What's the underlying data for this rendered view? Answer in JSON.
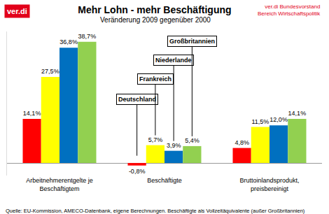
{
  "chart_data": {
    "type": "bar",
    "title": "Mehr Lohn - mehr Beschäftigung",
    "subtitle": "Veränderung 2009 gegenüber 2000",
    "logo": "ver.di",
    "publisher": [
      "ver.di Bundesvorstand",
      "Bereich Wirtschaftspolitik"
    ],
    "source": "Quelle: EU-Kommission, AMECO-Datenbank, eigene Berechnungen. Beschäftigte als Vollzeitäquivalente (außer Großbritannien)",
    "categories": [
      "Arbeitnehmerentgelte je Beschäftigtem",
      "Beschäftigte",
      "Bruttoinlandsprodukt, preisbereinigt"
    ],
    "series": [
      {
        "name": "Deutschland",
        "color": "#ff0000",
        "values": [
          14.1,
          -0.8,
          4.8
        ],
        "value_labels": [
          "14,1%",
          "-0,8%",
          "4,8%"
        ]
      },
      {
        "name": "Frankreich",
        "color": "#ffff00",
        "values": [
          27.5,
          5.7,
          11.5
        ],
        "value_labels": [
          "27,5%",
          "5,7%",
          "11,5%"
        ]
      },
      {
        "name": "Niederlande",
        "color": "#0070c0",
        "values": [
          36.8,
          3.9,
          12.0
        ],
        "value_labels": [
          "36,8%",
          "3,9%",
          "12,0%"
        ]
      },
      {
        "name": "Großbritannien",
        "color": "#92d050",
        "values": [
          38.7,
          5.4,
          14.1
        ],
        "value_labels": [
          "38,7%",
          "5,4%",
          "14,1%"
        ]
      }
    ],
    "ylim": [
      -4,
      42
    ],
    "tick_labels": "x",
    "data_labels": true,
    "grid": false
  }
}
